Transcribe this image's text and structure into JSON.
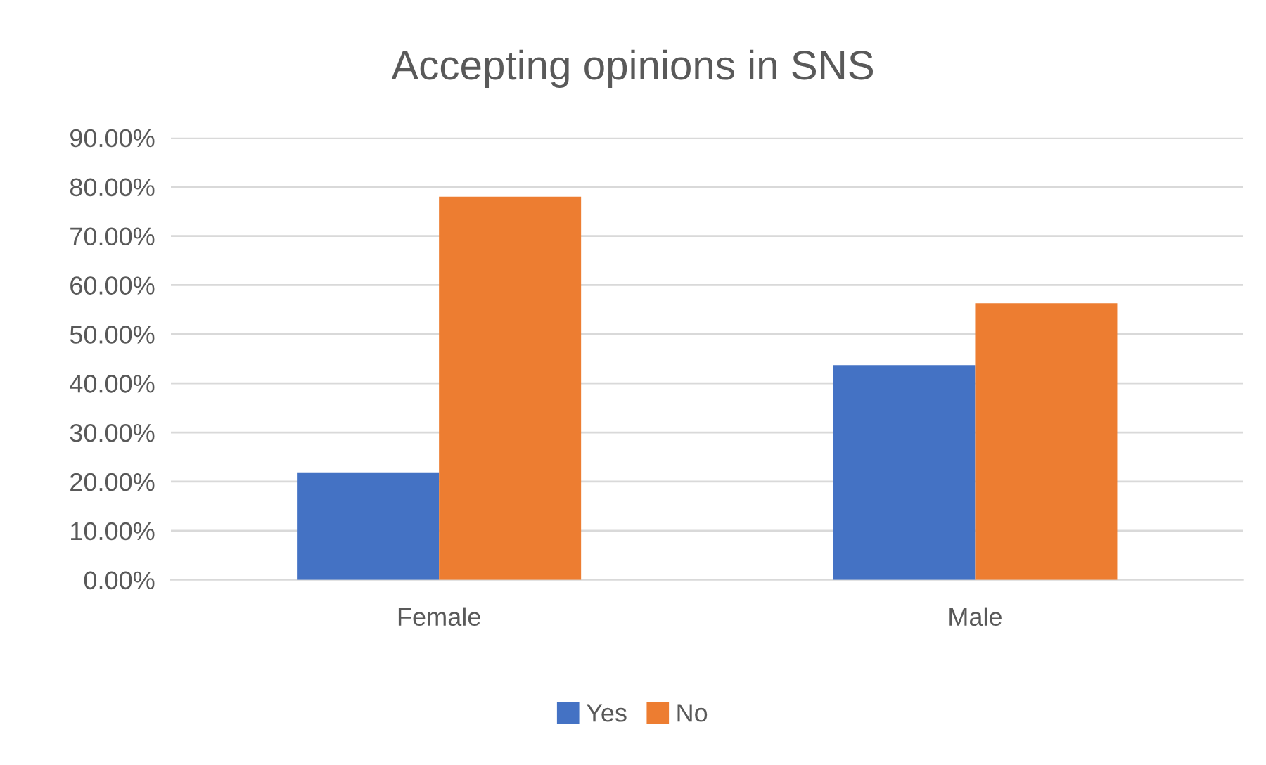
{
  "chart_data": {
    "type": "bar",
    "title": "Accepting opinions in SNS",
    "categories": [
      "Female",
      "Male"
    ],
    "series": [
      {
        "name": "Yes",
        "color": "#4472c4",
        "values": [
          21.9,
          43.7
        ]
      },
      {
        "name": "No",
        "color": "#ed7d31",
        "values": [
          78.0,
          56.3
        ]
      }
    ],
    "ylim": [
      0,
      90
    ],
    "yticks": [
      {
        "value": 0,
        "label": "0.00%"
      },
      {
        "value": 10,
        "label": "10.00%"
      },
      {
        "value": 20,
        "label": "20.00%"
      },
      {
        "value": 30,
        "label": "30.00%"
      },
      {
        "value": 40,
        "label": "40.00%"
      },
      {
        "value": 50,
        "label": "50.00%"
      },
      {
        "value": 60,
        "label": "60.00%"
      },
      {
        "value": 70,
        "label": "70.00%"
      },
      {
        "value": 80,
        "label": "80.00%"
      },
      {
        "value": 90,
        "label": "90.00%"
      }
    ],
    "grid": "y",
    "legend": "bottom"
  }
}
